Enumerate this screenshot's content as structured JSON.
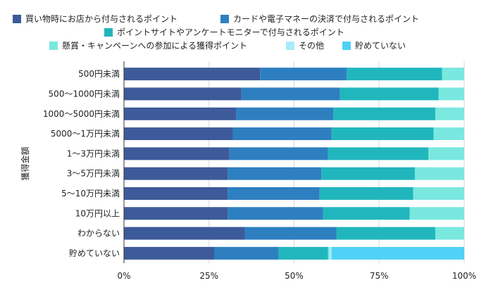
{
  "chart_data": {
    "type": "bar",
    "orientation": "horizontal",
    "stacked": true,
    "percent": true,
    "ylabel": "獲得金額",
    "xlabel": "",
    "xlim": [
      0,
      100
    ],
    "xticks": [
      "0%",
      "25%",
      "50%",
      "75%",
      "100%"
    ],
    "grid": true,
    "legend_position": "top",
    "categories": [
      "500円未満",
      "500〜1000円未満",
      "1000〜5000円未満",
      "5000〜1万円未満",
      "1〜3万円未満",
      "3〜5万円未満",
      "5〜10万円未満",
      "10万円以上",
      "わからない",
      "貯めていない"
    ],
    "series": [
      {
        "name": "買い物時にお店から付与されるポイント",
        "color": "#3d5a9a",
        "values": [
          40,
          34.5,
          33,
          32,
          31,
          30.5,
          30.5,
          30.5,
          35.5,
          26.5
        ]
      },
      {
        "name": "カードや電子マネーの決済で付与されるポイント",
        "color": "#2e7fc0",
        "values": [
          25.5,
          29,
          28.5,
          29,
          29,
          27.5,
          27,
          28,
          27,
          19
        ]
      },
      {
        "name": "ポイントサイトやアンケートモニターで付与されるポイント",
        "color": "#21b6bd",
        "values": [
          28,
          29,
          30,
          30,
          29.5,
          27.5,
          27.5,
          25.5,
          29,
          14.5
        ]
      },
      {
        "name": "懸賞・キャンペーンへの参加による獲得ポイント",
        "color": "#7ae8df",
        "values": [
          6.5,
          7.5,
          8.5,
          9,
          10.5,
          14.5,
          15,
          16,
          8.5,
          0.5
        ]
      },
      {
        "name": "その他",
        "color": "#a6ecfa",
        "values": [
          0,
          0,
          0,
          0,
          0,
          0,
          0,
          0,
          0,
          0.5
        ]
      },
      {
        "name": "貯めていない",
        "color": "#4fd2f5",
        "values": [
          0,
          0,
          0,
          0,
          0,
          0,
          0,
          0,
          0,
          39
        ]
      }
    ]
  }
}
